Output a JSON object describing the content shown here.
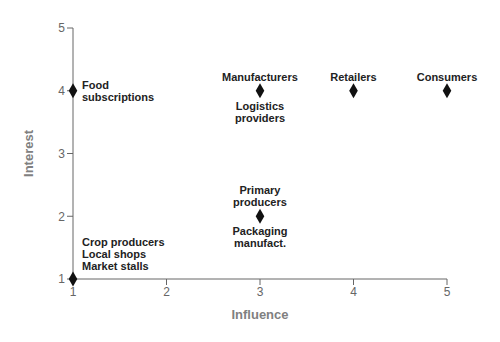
{
  "chart_data": {
    "type": "scatter",
    "x": [
      1,
      3,
      4,
      5,
      1,
      3
    ],
    "values": [
      4,
      4,
      4,
      4,
      1,
      2
    ],
    "color": "#111111",
    "marker": "diamond",
    "xlabel": "Influence",
    "ylabel": "Interest",
    "xlim": [
      1,
      5
    ],
    "ylim": [
      1,
      5
    ],
    "xticks": [
      1,
      2,
      3,
      4,
      5
    ],
    "yticks": [
      1,
      2,
      3,
      4,
      5
    ],
    "grid": false,
    "annotations": [
      {
        "text": "Food\nsubscriptions",
        "x": 1,
        "y": 4
      },
      {
        "text": "Manufacturers",
        "x": 3,
        "y": 4
      },
      {
        "text": "Logistics\nproviders",
        "x": 3,
        "y": 4
      },
      {
        "text": "Retailers",
        "x": 4,
        "y": 4
      },
      {
        "text": "Consumers",
        "x": 5,
        "y": 4
      },
      {
        "text": "Crop producers\nLocal shops\nMarket stalls",
        "x": 1,
        "y": 1
      },
      {
        "text": "Primary\nproducers",
        "x": 3,
        "y": 2
      },
      {
        "text": "Packaging\nmanufact.",
        "x": 3,
        "y": 2
      }
    ]
  }
}
